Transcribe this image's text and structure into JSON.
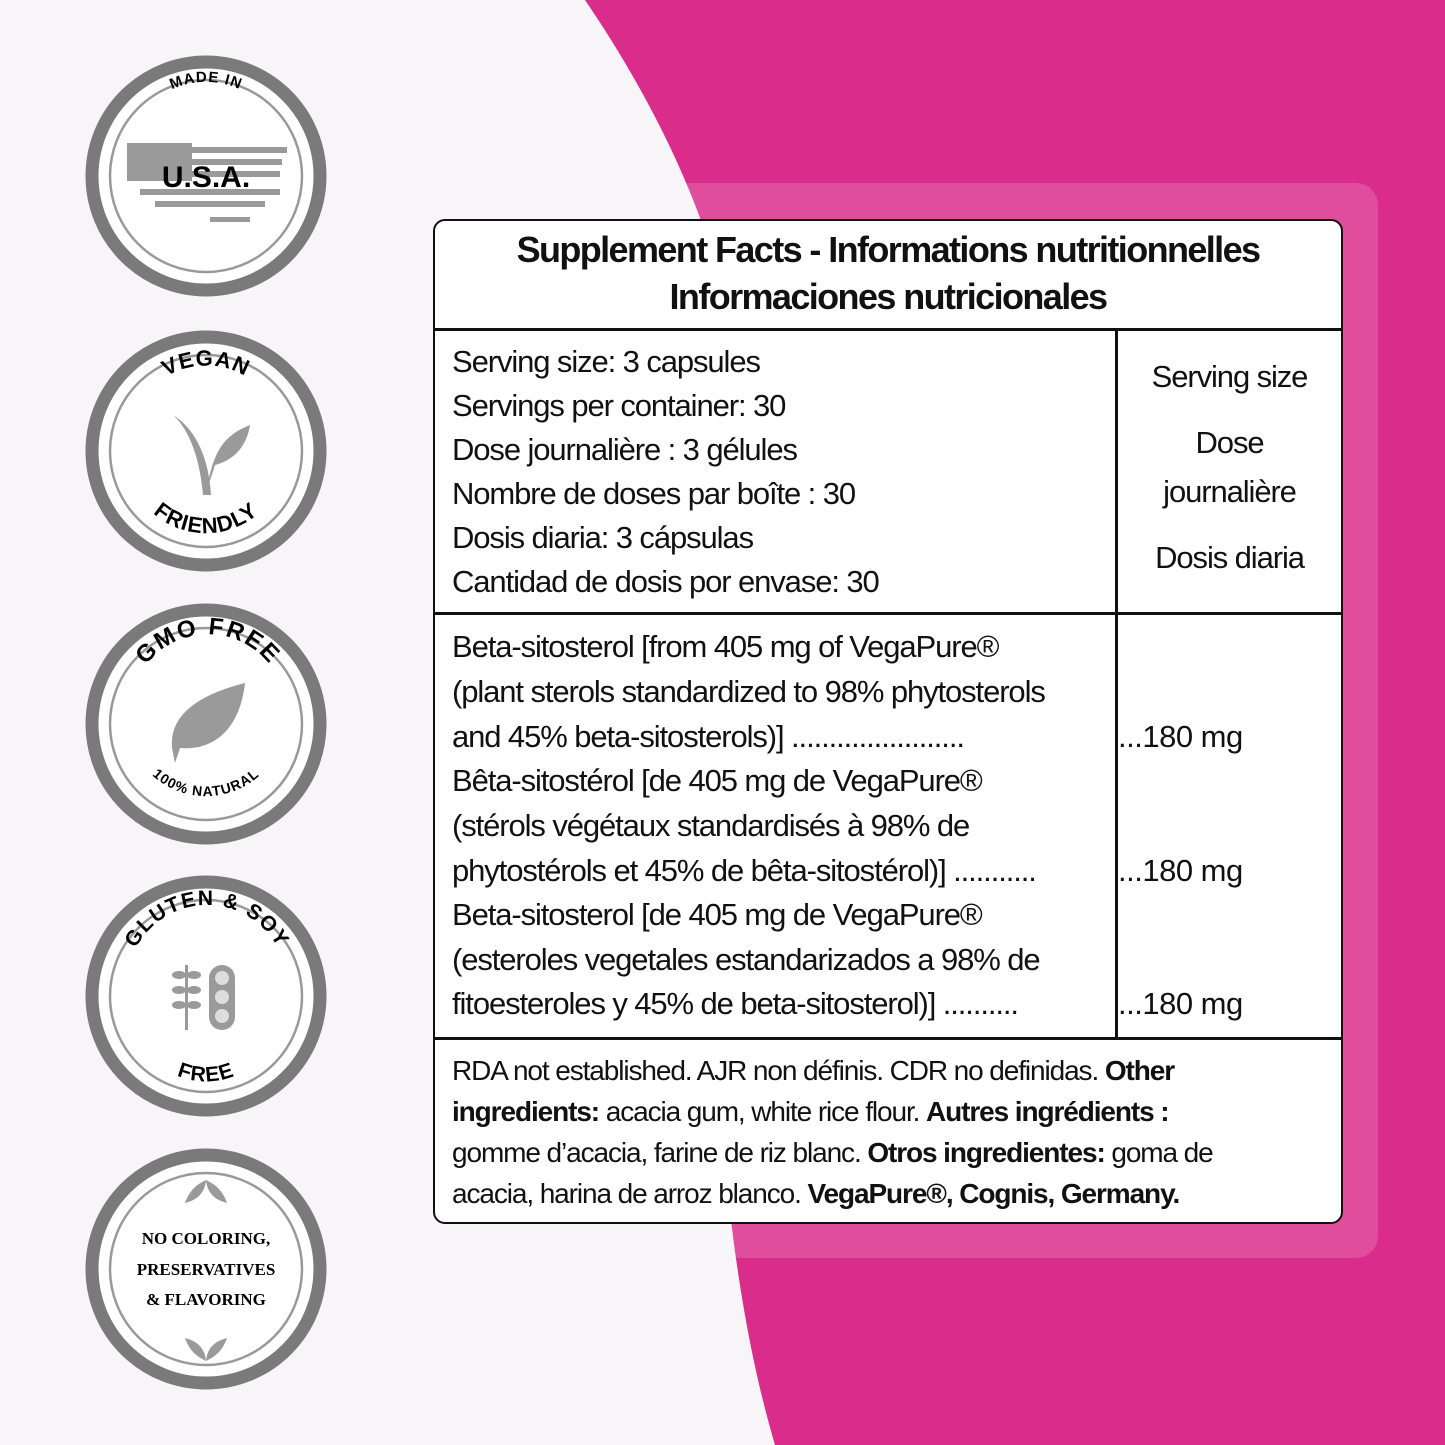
{
  "colors": {
    "accent": "#da2c8a",
    "card_overlay": "#e04f9c",
    "badge_ring": "#7a7a7a",
    "icon_gray": "#9a9a9a"
  },
  "badges": [
    {
      "icon": "usa-flag-map-icon",
      "top": "MADE IN",
      "main": "U.S.A."
    },
    {
      "icon": "vegan-v-leaf-icon",
      "top": "VEGAN",
      "bottom": "FRIENDLY"
    },
    {
      "icon": "leaf-icon",
      "top": "GMO FREE",
      "bottom": "100% NATURAL"
    },
    {
      "icon": "wheat-soy-icon",
      "top": "GLUTEN & SOY",
      "bottom": "FREE"
    },
    {
      "icon": "leaves-icon",
      "lines": [
        "NO COLORING,",
        "PRESERVATIVES",
        "& FLAVORING"
      ]
    }
  ],
  "facts": {
    "title_line1": "Supplement Facts - Informations nutritionnelles",
    "title_line2": "Informaciones nutricionales",
    "serving_lines": [
      "Serving size: 3 capsules",
      "Servings per container: 30",
      "Dose journalière : 3 gélules",
      "Nombre de doses par boîte : 30",
      "Dosis diaria: 3 cápsulas",
      "Cantidad de dosis por envase: 30"
    ],
    "serving_headers": [
      "Serving size",
      "Dose",
      "journalière",
      "Dosis diaria"
    ],
    "ingredients": [
      {
        "lines": [
          "Beta-sitosterol [from 405 mg of VegaPure®",
          "(plant sterols standardized to 98% phytosterols",
          "and 45% beta-sitosterols)]  ......................."
        ],
        "amount": "...180  mg"
      },
      {
        "lines": [
          "Bêta-sitostérol [de 405 mg de VegaPure®",
          "(stérols végétaux standardisés à 98% de",
          "phytostérols et 45% de bêta-sitostérol)] ..........."
        ],
        "amount": "...180  mg"
      },
      {
        "lines": [
          "Beta-sitosterol [de 405 mg de VegaPure®",
          "(esteroles vegetales estandarizados a 98% de",
          "fitoesteroles y 45% de beta-sitosterol)]  .........."
        ],
        "amount": "...180  mg"
      }
    ],
    "footer": {
      "l1_a": "RDA not established. AJR non définis. CDR no definidas. ",
      "l1_b": "Other",
      "l2_a": "ingredients:",
      "l2_b": " acacia gum, white rice flour. ",
      "l2_c": "Autres ingrédients :",
      "l3_a": "gomme d’acacia, farine de riz blanc. ",
      "l3_b": "Otros ingredientes:",
      "l3_c": " goma de",
      "l4_a": "acacia, harina de arroz blanco. ",
      "l4_b": "VegaPure®, Cognis, Germany."
    }
  }
}
